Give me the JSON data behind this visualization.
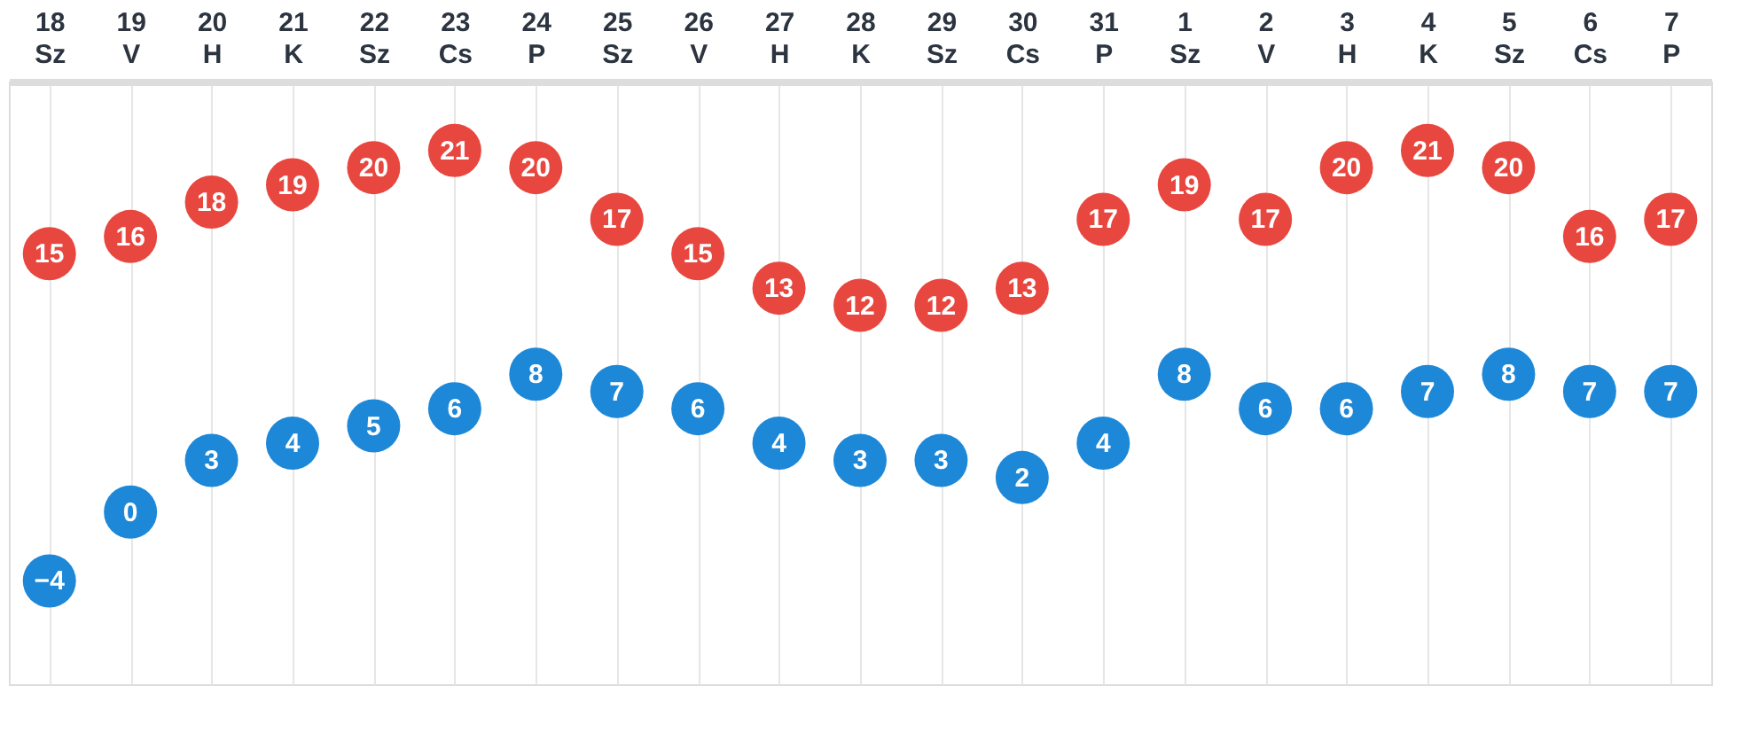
{
  "chart_data": {
    "type": "scatter",
    "categories": [
      "18\nSz",
      "19\nV",
      "20\nH",
      "21\nK",
      "22\nSz",
      "23\nCs",
      "24\nP",
      "25\nSz",
      "26\nV",
      "27\nH",
      "28\nK",
      "29\nSz",
      "30\nCs",
      "31\nP",
      "1\nSz",
      "2\nV",
      "3\nH",
      "4\nK",
      "5\nSz",
      "6\nCs",
      "7\nP"
    ],
    "series": [
      {
        "color": "#e8473f",
        "values": [
          15,
          16,
          18,
          19,
          20,
          21,
          20,
          17,
          15,
          13,
          12,
          12,
          13,
          17,
          19,
          17,
          20,
          21,
          20,
          16,
          17
        ]
      },
      {
        "color": "#1e88d8",
        "values": [
          -4,
          0,
          3,
          4,
          5,
          6,
          8,
          7,
          6,
          4,
          3,
          3,
          2,
          4,
          8,
          6,
          6,
          7,
          8,
          7,
          7
        ]
      }
    ],
    "data_labels": true,
    "grid": "x",
    "marker": "circle",
    "tick_labels": "x",
    "legend": false
  }
}
